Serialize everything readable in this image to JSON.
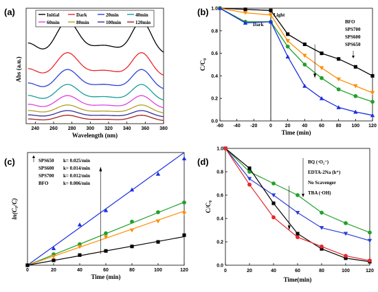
{
  "chart_data": [
    {
      "panel": "(a)",
      "type": "line",
      "xlabel": "Wavelength (nm)",
      "ylabel": "Abs (a.u.)",
      "xlim": [
        230,
        380
      ],
      "xticks": [
        240,
        260,
        280,
        300,
        320,
        340,
        360,
        380
      ],
      "legend": "top",
      "series": [
        {
          "name": "Initial",
          "color": "#000000",
          "base": 0.37,
          "p1": 0.55,
          "p2": 0.55
        },
        {
          "name": "Dark",
          "color": "#e8262a",
          "base": 0.25,
          "p1": 0.38,
          "p2": 0.38
        },
        {
          "name": "20min",
          "color": "#2b3fd8",
          "base": 0.18,
          "p1": 0.29,
          "p2": 0.29
        },
        {
          "name": "40min",
          "color": "#1a9c9c",
          "base": 0.12,
          "p1": 0.21,
          "p2": 0.21
        },
        {
          "name": "60min",
          "color": "#e040e0",
          "base": 0.08,
          "p1": 0.15,
          "p2": 0.15
        },
        {
          "name": "80min",
          "color": "#b0a020",
          "base": 0.055,
          "p1": 0.1,
          "p2": 0.1
        },
        {
          "name": "100min",
          "color": "#3030a0",
          "base": 0.035,
          "p1": 0.07,
          "p2": 0.07
        },
        {
          "name": "120min",
          "color": "#a02020",
          "base": 0.015,
          "p1": 0.045,
          "p2": 0.045
        }
      ]
    },
    {
      "panel": "(b)",
      "type": "line",
      "xlabel": "Time (min)",
      "ylabel": "C/C₀",
      "xlim": [
        -60,
        120
      ],
      "ylim": [
        0,
        1.0
      ],
      "xticks": [
        -60,
        -40,
        -20,
        0,
        20,
        40,
        60,
        80,
        100,
        120
      ],
      "yticks": [
        0,
        0.2,
        0.4,
        0.6,
        0.8,
        1.0
      ],
      "annotations": {
        "light": "Light",
        "dark": "Dark"
      },
      "legend": "top-right",
      "series": [
        {
          "name": "BFO",
          "color": "#000000",
          "marker": "square",
          "x": [
            -60,
            -30,
            0,
            20,
            40,
            60,
            80,
            100,
            120
          ],
          "y": [
            1.0,
            0.99,
            0.98,
            0.77,
            0.68,
            0.6,
            0.55,
            0.48,
            0.4
          ]
        },
        {
          "name": "SPS700",
          "color": "#ff8c00",
          "marker": "triangle-down",
          "x": [
            -60,
            -30,
            0,
            20,
            40,
            60,
            80,
            100,
            120
          ],
          "y": [
            1.0,
            0.96,
            0.94,
            0.71,
            0.58,
            0.47,
            0.37,
            0.31,
            0.25
          ]
        },
        {
          "name": "SPS600",
          "color": "#22a02a",
          "marker": "circle",
          "x": [
            -60,
            -30,
            0,
            20,
            40,
            60,
            80,
            100,
            120
          ],
          "y": [
            1.0,
            0.88,
            0.88,
            0.66,
            0.5,
            0.38,
            0.28,
            0.22,
            0.17
          ]
        },
        {
          "name": "SPS650",
          "color": "#1a2ee0",
          "marker": "triangle-up",
          "x": [
            -60,
            -30,
            0,
            20,
            40,
            60,
            80,
            100,
            120
          ],
          "y": [
            1.0,
            0.87,
            0.88,
            0.57,
            0.31,
            0.2,
            0.12,
            0.08,
            0.05
          ]
        }
      ]
    },
    {
      "panel": "(c)",
      "type": "scatter",
      "xlabel": "Time (min)",
      "ylabel": "ln(C₀/C)",
      "xlim": [
        0,
        120
      ],
      "ylim": [
        0,
        3.0
      ],
      "xticks": [
        0,
        20,
        40,
        60,
        80,
        100,
        120
      ],
      "legend": "top-left",
      "legend_text": [
        {
          "name": "SPS650",
          "k": "k= 0.025/min"
        },
        {
          "name": "SPS600",
          "k": "k= 0.014/min"
        },
        {
          "name": "SPS700",
          "k": "k= 0.012/min"
        },
        {
          "name": "BFO",
          "k": "k= 0.006/min"
        }
      ],
      "series": [
        {
          "name": "SPS650",
          "color": "#1a2ee0",
          "marker": "triangle-up",
          "x": [
            0,
            20,
            40,
            60,
            80,
            100,
            120
          ],
          "y": [
            0.0,
            0.45,
            1.08,
            1.46,
            2.01,
            2.43,
            2.84
          ],
          "fit": [
            0.0,
            3.0
          ]
        },
        {
          "name": "SPS600",
          "color": "#22a02a",
          "marker": "circle",
          "x": [
            0,
            20,
            40,
            60,
            80,
            100,
            120
          ],
          "y": [
            0.0,
            0.29,
            0.56,
            0.85,
            1.16,
            1.41,
            1.67
          ],
          "fit": [
            0.0,
            1.68
          ]
        },
        {
          "name": "SPS700",
          "color": "#ff8c00",
          "marker": "triangle-down",
          "x": [
            0,
            20,
            40,
            60,
            80,
            100,
            120
          ],
          "y": [
            0.0,
            0.23,
            0.49,
            0.75,
            0.93,
            1.17,
            1.38
          ],
          "fit": [
            0.0,
            1.44
          ]
        },
        {
          "name": "BFO",
          "color": "#000000",
          "marker": "square",
          "x": [
            0,
            20,
            40,
            60,
            80,
            100,
            120
          ],
          "y": [
            0.0,
            0.13,
            0.27,
            0.38,
            0.5,
            0.62,
            0.8
          ],
          "fit": [
            0.0,
            0.76
          ]
        }
      ]
    },
    {
      "panel": "(d)",
      "type": "line",
      "xlabel": "Time(min)",
      "ylabel": "C/C₀",
      "xlim": [
        0,
        120
      ],
      "ylim": [
        0,
        1.0
      ],
      "xticks": [
        0,
        20,
        40,
        60,
        80,
        100,
        120
      ],
      "yticks": [
        0.0,
        0.2,
        0.4,
        0.6,
        0.8,
        1.0
      ],
      "legend": "top-right",
      "series": [
        {
          "name": "BQ (·O₂⁻)",
          "color": "#22a02a",
          "marker": "circle",
          "x": [
            0,
            20,
            40,
            60,
            80,
            100,
            120
          ],
          "y": [
            1.0,
            0.8,
            0.7,
            0.6,
            0.45,
            0.36,
            0.28
          ]
        },
        {
          "name": "EDTA-2Na (h⁺)",
          "color": "#2b3fd8",
          "marker": "triangle-down",
          "x": [
            0,
            20,
            40,
            60,
            80,
            100,
            120
          ],
          "y": [
            1.0,
            0.74,
            0.6,
            0.45,
            0.32,
            0.27,
            0.21
          ]
        },
        {
          "name": "No Scavenger",
          "color": "#000000",
          "marker": "square",
          "x": [
            0,
            20,
            40,
            60,
            80,
            100,
            120
          ],
          "y": [
            1.0,
            0.83,
            0.53,
            0.27,
            0.14,
            0.06,
            0.03
          ]
        },
        {
          "name": "TBA (·OH)",
          "color": "#e8262a",
          "marker": "circle",
          "x": [
            0,
            20,
            40,
            60,
            80,
            100,
            120
          ],
          "y": [
            1.0,
            0.69,
            0.41,
            0.24,
            0.16,
            0.08,
            0.04
          ]
        }
      ]
    }
  ]
}
